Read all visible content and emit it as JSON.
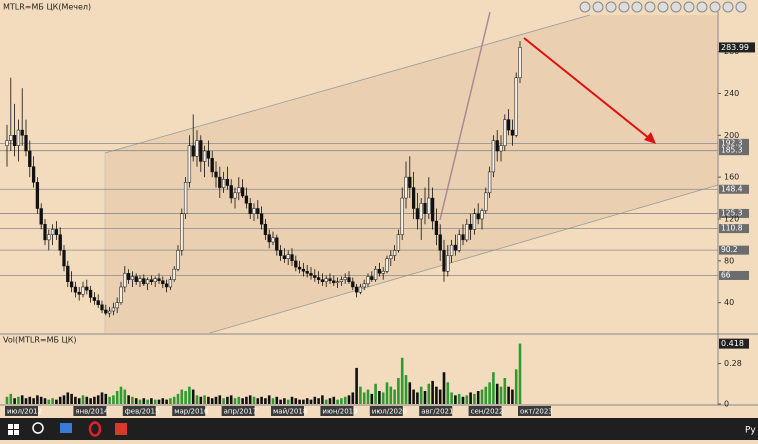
{
  "chart_data": {
    "type": "candlestick",
    "title": "MTLR=МБ ЦК(Мечел)",
    "volume_title": "Vol(MTLR=МБ ЦК)",
    "categories": [
      "июл/2012",
      null,
      null,
      null,
      null,
      null,
      null,
      null,
      null,
      null,
      null,
      null,
      null,
      null,
      null,
      null,
      null,
      null,
      "янв/2014",
      null,
      null,
      null,
      null,
      null,
      null,
      null,
      null,
      null,
      null,
      null,
      null,
      "фев/2015",
      null,
      null,
      null,
      null,
      null,
      null,
      null,
      null,
      null,
      null,
      null,
      null,
      "мар/2016",
      null,
      null,
      null,
      null,
      null,
      null,
      null,
      null,
      null,
      null,
      null,
      null,
      "апр/2017",
      null,
      null,
      null,
      null,
      null,
      null,
      null,
      null,
      null,
      null,
      null,
      null,
      "май/2018",
      null,
      null,
      null,
      null,
      null,
      null,
      null,
      null,
      null,
      null,
      null,
      null,
      "июн/2019",
      null,
      null,
      null,
      null,
      null,
      null,
      null,
      null,
      null,
      null,
      null,
      null,
      "июл/2020",
      null,
      null,
      null,
      null,
      null,
      null,
      null,
      null,
      null,
      null,
      null,
      null,
      "авг/2021",
      null,
      null,
      null,
      null,
      null,
      null,
      null,
      null,
      null,
      null,
      null,
      null,
      "сен/2022",
      null,
      null,
      null,
      null,
      null,
      null,
      null,
      null,
      null,
      null,
      null,
      null,
      "окт/2023"
    ],
    "open": [
      190,
      195,
      200,
      190,
      205,
      200,
      185,
      170,
      155,
      130,
      115,
      100,
      105,
      110,
      105,
      90,
      75,
      60,
      55,
      50,
      48,
      55,
      52,
      45,
      42,
      38,
      33,
      30,
      32,
      35,
      40,
      55,
      68,
      62,
      65,
      60,
      63,
      58,
      62,
      60,
      63,
      61,
      58,
      55,
      62,
      72,
      90,
      125,
      155,
      190,
      180,
      195,
      175,
      185,
      178,
      165,
      160,
      150,
      158,
      152,
      140,
      145,
      150,
      142,
      135,
      125,
      130,
      125,
      115,
      105,
      98,
      102,
      90,
      85,
      82,
      86,
      80,
      74,
      72,
      70,
      68,
      66,
      64,
      62,
      60,
      63,
      61,
      59,
      60,
      62,
      64,
      60,
      55,
      50,
      55,
      58,
      65,
      62,
      72,
      68,
      70,
      82,
      85,
      90,
      105,
      140,
      160,
      150,
      130,
      120,
      135,
      125,
      140,
      118,
      105,
      90,
      70,
      85,
      95,
      90,
      105,
      100,
      115,
      110,
      125,
      120,
      128,
      145,
      165,
      195,
      185,
      190,
      215,
      205,
      200,
      255
    ],
    "high": [
      210,
      255,
      230,
      215,
      245,
      215,
      195,
      180,
      160,
      135,
      120,
      110,
      115,
      118,
      112,
      95,
      80,
      70,
      60,
      55,
      60,
      62,
      56,
      50,
      48,
      42,
      38,
      36,
      40,
      45,
      60,
      75,
      72,
      70,
      68,
      66,
      67,
      64,
      66,
      65,
      68,
      65,
      62,
      65,
      75,
      95,
      130,
      160,
      200,
      220,
      205,
      200,
      190,
      195,
      185,
      175,
      170,
      165,
      170,
      158,
      150,
      160,
      158,
      150,
      140,
      135,
      138,
      132,
      120,
      110,
      108,
      105,
      95,
      92,
      90,
      92,
      85,
      80,
      78,
      76,
      74,
      72,
      70,
      68,
      66,
      68,
      66,
      64,
      65,
      68,
      70,
      64,
      58,
      58,
      62,
      68,
      70,
      75,
      78,
      74,
      85,
      90,
      95,
      110,
      150,
      175,
      180,
      165,
      145,
      140,
      150,
      160,
      150,
      130,
      115,
      100,
      95,
      100,
      105,
      110,
      115,
      120,
      125,
      130,
      135,
      130,
      150,
      170,
      200,
      205,
      200,
      220,
      225,
      215,
      260,
      290
    ],
    "low": [
      170,
      185,
      180,
      175,
      190,
      180,
      160,
      150,
      125,
      110,
      95,
      90,
      95,
      100,
      85,
      70,
      55,
      50,
      45,
      42,
      45,
      48,
      40,
      38,
      35,
      30,
      28,
      26,
      28,
      30,
      38,
      50,
      58,
      55,
      57,
      55,
      56,
      52,
      57,
      55,
      58,
      54,
      50,
      52,
      60,
      70,
      85,
      120,
      150,
      175,
      170,
      165,
      160,
      170,
      160,
      150,
      140,
      145,
      148,
      135,
      130,
      138,
      140,
      130,
      120,
      118,
      120,
      110,
      100,
      92,
      95,
      85,
      80,
      78,
      76,
      75,
      70,
      68,
      65,
      64,
      62,
      60,
      58,
      56,
      55,
      58,
      56,
      54,
      56,
      58,
      58,
      52,
      45,
      48,
      52,
      55,
      60,
      60,
      65,
      62,
      68,
      75,
      80,
      88,
      100,
      130,
      140,
      120,
      110,
      100,
      115,
      120,
      110,
      95,
      80,
      60,
      65,
      78,
      85,
      88,
      95,
      98,
      100,
      105,
      115,
      110,
      125,
      140,
      160,
      175,
      175,
      185,
      200,
      190,
      198,
      250
    ],
    "close": [
      195,
      200,
      190,
      205,
      200,
      185,
      170,
      155,
      130,
      115,
      100,
      105,
      110,
      105,
      90,
      75,
      60,
      55,
      50,
      48,
      55,
      52,
      45,
      42,
      38,
      33,
      30,
      32,
      35,
      40,
      55,
      68,
      62,
      65,
      60,
      63,
      58,
      62,
      60,
      63,
      61,
      58,
      55,
      62,
      72,
      90,
      125,
      155,
      190,
      180,
      195,
      175,
      185,
      178,
      165,
      160,
      150,
      158,
      152,
      140,
      145,
      150,
      142,
      135,
      125,
      130,
      125,
      115,
      105,
      98,
      102,
      90,
      85,
      82,
      86,
      80,
      74,
      72,
      70,
      68,
      66,
      64,
      62,
      60,
      63,
      61,
      59,
      60,
      62,
      64,
      60,
      55,
      50,
      55,
      58,
      65,
      62,
      72,
      68,
      70,
      82,
      85,
      90,
      105,
      140,
      160,
      150,
      130,
      120,
      135,
      125,
      140,
      118,
      105,
      90,
      70,
      85,
      95,
      90,
      105,
      100,
      115,
      110,
      125,
      120,
      128,
      145,
      165,
      195,
      185,
      190,
      215,
      205,
      200,
      255,
      283.99
    ],
    "volume": [
      0.05,
      0.07,
      0.04,
      0.05,
      0.06,
      0.04,
      0.05,
      0.04,
      0.06,
      0.05,
      0.04,
      0.03,
      0.04,
      0.03,
      0.05,
      0.06,
      0.08,
      0.07,
      0.05,
      0.04,
      0.06,
      0.05,
      0.04,
      0.05,
      0.06,
      0.08,
      0.07,
      0.05,
      0.06,
      0.09,
      0.12,
      0.1,
      0.06,
      0.05,
      0.04,
      0.03,
      0.04,
      0.03,
      0.04,
      0.03,
      0.03,
      0.04,
      0.03,
      0.04,
      0.05,
      0.07,
      0.1,
      0.09,
      0.12,
      0.1,
      0.06,
      0.05,
      0.06,
      0.05,
      0.04,
      0.05,
      0.06,
      0.04,
      0.05,
      0.06,
      0.04,
      0.05,
      0.04,
      0.05,
      0.06,
      0.05,
      0.04,
      0.05,
      0.04,
      0.06,
      0.04,
      0.05,
      0.03,
      0.04,
      0.03,
      0.05,
      0.04,
      0.03,
      0.03,
      0.04,
      0.03,
      0.05,
      0.04,
      0.06,
      0.03,
      0.04,
      0.05,
      0.03,
      0.04,
      0.05,
      0.06,
      0.08,
      0.25,
      0.12,
      0.08,
      0.1,
      0.07,
      0.14,
      0.09,
      0.08,
      0.15,
      0.12,
      0.1,
      0.18,
      0.32,
      0.2,
      0.15,
      0.1,
      0.08,
      0.12,
      0.09,
      0.14,
      0.16,
      0.12,
      0.1,
      0.22,
      0.15,
      0.08,
      0.06,
      0.07,
      0.05,
      0.06,
      0.08,
      0.07,
      0.09,
      0.1,
      0.12,
      0.15,
      0.22,
      0.14,
      0.12,
      0.18,
      0.12,
      0.1,
      0.24,
      0.418
    ],
    "ylim": [
      11,
      315
    ],
    "yticks": [
      40,
      80,
      120,
      160,
      200,
      240,
      280
    ],
    "volume_lim": [
      0,
      0.45
    ],
    "volume_ticks": [
      0,
      0.28
    ],
    "levels": [
      192.3,
      185.3,
      148.4,
      125.3,
      110.8,
      90.2,
      66
    ],
    "up_color": "#f4efe6",
    "down_color": "#111111",
    "volume_up_color": "#2f9a2f",
    "volume_down_color": "#111111"
  },
  "taskbar": {
    "language": "Ру"
  }
}
